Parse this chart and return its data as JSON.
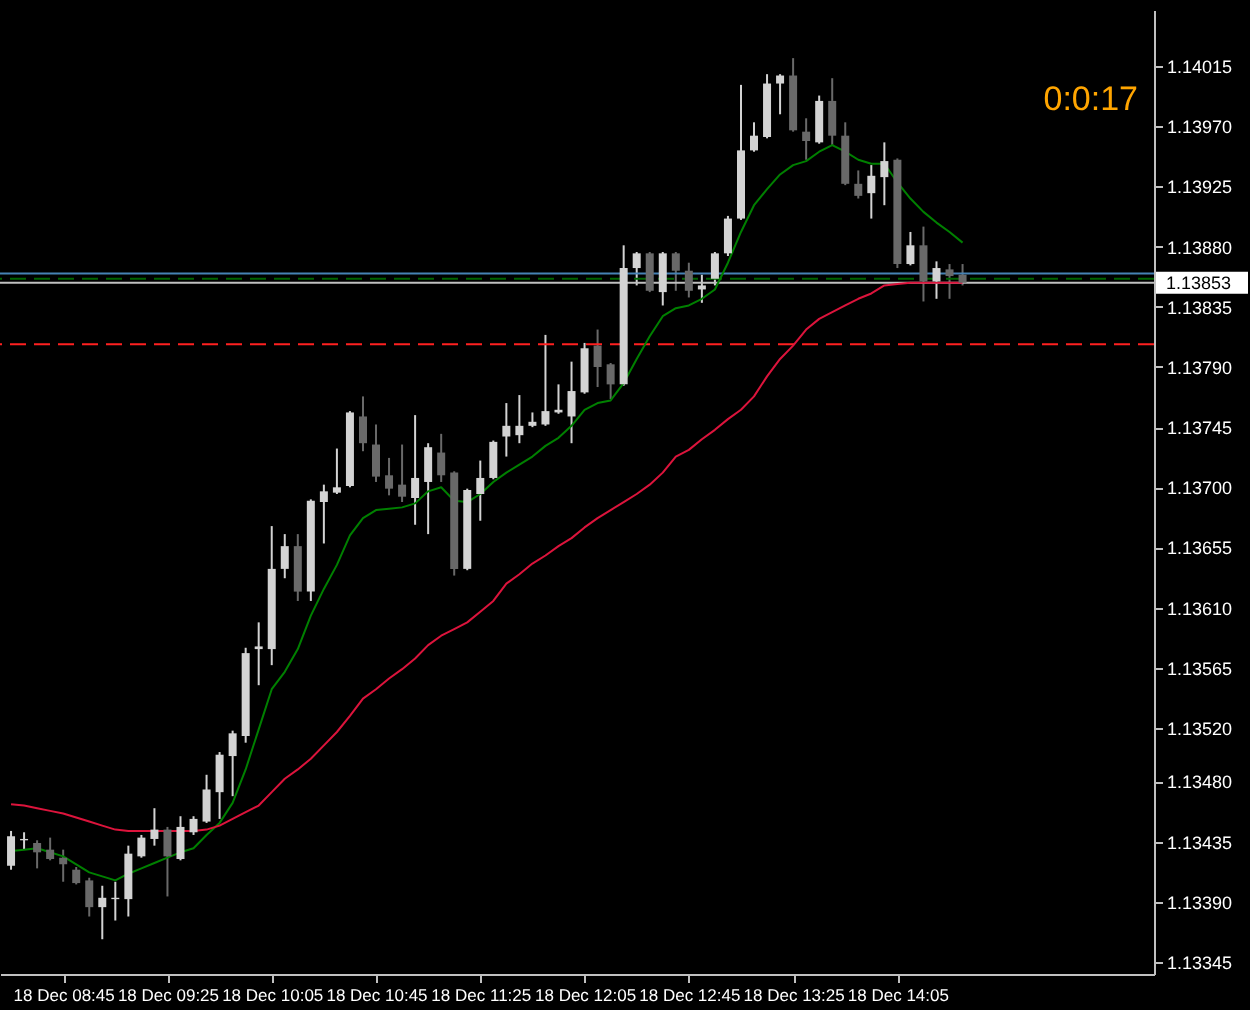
{
  "chart_data": {
    "type": "candlestick",
    "categories": [
      null,
      null,
      null,
      null,
      "18 Dec 08:45",
      null,
      null,
      null,
      null,
      null,
      null,
      null,
      "18 Dec 09:25",
      null,
      null,
      null,
      null,
      null,
      null,
      null,
      "18 Dec 10:05",
      null,
      null,
      null,
      null,
      null,
      null,
      null,
      "18 Dec 10:45",
      null,
      null,
      null,
      null,
      null,
      null,
      null,
      "18 Dec 11:25",
      null,
      null,
      null,
      null,
      null,
      null,
      null,
      "18 Dec 12:05",
      null,
      null,
      null,
      null,
      null,
      null,
      null,
      "18 Dec 12:45",
      null,
      null,
      null,
      null,
      null,
      null,
      null,
      "18 Dec 13:25",
      null,
      null,
      null,
      null,
      null,
      null,
      null,
      "18 Dec 14:05",
      null,
      null,
      null,
      null,
      null
    ],
    "ohlc": [
      [
        1.13417,
        1.13443,
        1.13414,
        1.13439
      ],
      [
        1.13436,
        1.13442,
        1.13429,
        1.13437
      ],
      [
        1.13434,
        1.13436,
        1.13415,
        1.13427
      ],
      [
        1.13429,
        1.13438,
        1.13421,
        1.13422
      ],
      [
        1.13423,
        1.13429,
        1.13405,
        1.13418
      ],
      [
        1.13414,
        1.13416,
        1.13403,
        1.13404
      ],
      [
        1.13406,
        1.13408,
        1.13379,
        1.13386
      ],
      [
        1.13386,
        1.13402,
        1.13362,
        1.13393
      ],
      [
        1.13392,
        1.13405,
        1.13376,
        1.13393
      ],
      [
        1.13392,
        1.13432,
        1.13379,
        1.13426
      ],
      [
        1.13424,
        1.1344,
        1.13423,
        1.13438
      ],
      [
        1.13437,
        1.1346,
        1.13432,
        1.13444
      ],
      [
        1.13444,
        1.13446,
        1.13394,
        1.13424
      ],
      [
        1.13422,
        1.13454,
        1.13421,
        1.13446
      ],
      [
        1.13442,
        1.13454,
        1.1344,
        1.13452
      ],
      [
        1.1345,
        1.13485,
        1.13449,
        1.13474
      ],
      [
        1.13472,
        1.13502,
        1.13452,
        1.135
      ],
      [
        1.13499,
        1.13518,
        1.13469,
        1.13516
      ],
      [
        1.13514,
        1.1358,
        1.13509,
        1.13576
      ],
      [
        1.13579,
        1.13599,
        1.13552,
        1.13581
      ],
      [
        1.13579,
        1.13671,
        1.13567,
        1.13639
      ],
      [
        1.13639,
        1.13665,
        1.13632,
        1.13656
      ],
      [
        1.13656,
        1.13665,
        1.13615,
        1.13622
      ],
      [
        1.13622,
        1.13691,
        1.13615,
        1.1369
      ],
      [
        1.13689,
        1.13702,
        1.13658,
        1.13697
      ],
      [
        1.13696,
        1.13729,
        1.13695,
        1.137
      ],
      [
        1.13701,
        1.13757,
        1.137,
        1.13756
      ],
      [
        1.13753,
        1.13768,
        1.13727,
        1.13733
      ],
      [
        1.13732,
        1.13747,
        1.13704,
        1.13708
      ],
      [
        1.13709,
        1.13722,
        1.13694,
        1.13699
      ],
      [
        1.13702,
        1.13732,
        1.13689,
        1.13693
      ],
      [
        1.13692,
        1.13754,
        1.13672,
        1.13707
      ],
      [
        1.13704,
        1.13733,
        1.13665,
        1.1373
      ],
      [
        1.13726,
        1.1374,
        1.13704,
        1.13709
      ],
      [
        1.13711,
        1.13712,
        1.13634,
        1.13639
      ],
      [
        1.13639,
        1.13699,
        1.13638,
        1.13698
      ],
      [
        1.13695,
        1.1372,
        1.13675,
        1.13707
      ],
      [
        1.13707,
        1.13735,
        1.13706,
        1.13734
      ],
      [
        1.13738,
        1.13763,
        1.13723,
        1.13746
      ],
      [
        1.13739,
        1.13769,
        1.13733,
        1.13746
      ],
      [
        1.13746,
        1.13756,
        1.13745,
        1.13749
      ],
      [
        1.13747,
        1.13814,
        1.13746,
        1.13757
      ],
      [
        1.13756,
        1.13777,
        1.13755,
        1.13758
      ],
      [
        1.13753,
        1.13794,
        1.13733,
        1.13772
      ],
      [
        1.13771,
        1.13808,
        1.1377,
        1.13804
      ],
      [
        1.13806,
        1.13818,
        1.13775,
        1.1379
      ],
      [
        1.13792,
        1.13793,
        1.13766,
        1.13777
      ],
      [
        1.13777,
        1.13881,
        1.13776,
        1.13864
      ],
      [
        1.13864,
        1.13876,
        1.13851,
        1.13875
      ],
      [
        1.13875,
        1.13876,
        1.13846,
        1.13847
      ],
      [
        1.13846,
        1.13876,
        1.13836,
        1.13875
      ],
      [
        1.13875,
        1.13876,
        1.13847,
        1.13862
      ],
      [
        1.13862,
        1.13868,
        1.13842,
        1.13847
      ],
      [
        1.13848,
        1.13859,
        1.13838,
        1.13851
      ],
      [
        1.13856,
        1.13876,
        1.13851,
        1.13875
      ],
      [
        1.13875,
        1.13903,
        1.13873,
        1.13901
      ],
      [
        1.13901,
        1.14001,
        1.139,
        1.13952
      ],
      [
        1.13952,
        1.13973,
        1.13951,
        1.13963
      ],
      [
        1.13962,
        1.14009,
        1.13961,
        1.14002
      ],
      [
        1.14002,
        1.14009,
        1.13979,
        1.14008
      ],
      [
        1.14008,
        1.14021,
        1.13966,
        1.13967
      ],
      [
        1.13966,
        1.13976,
        1.13945,
        1.13959
      ],
      [
        1.13958,
        1.13993,
        1.13957,
        1.13989
      ],
      [
        1.13989,
        1.14006,
        1.13956,
        1.13963
      ],
      [
        1.13963,
        1.13973,
        1.13926,
        1.13927
      ],
      [
        1.13927,
        1.13937,
        1.13916,
        1.13918
      ],
      [
        1.1392,
        1.13941,
        1.13901,
        1.13933
      ],
      [
        1.13932,
        1.13958,
        1.13911,
        1.13944
      ],
      [
        1.13945,
        1.13946,
        1.13864,
        1.13867
      ],
      [
        1.13867,
        1.13891,
        1.13866,
        1.13881
      ],
      [
        1.13881,
        1.13895,
        1.13839,
        1.13854
      ],
      [
        1.13854,
        1.13869,
        1.13841,
        1.13864
      ],
      [
        1.13863,
        1.13867,
        1.13841,
        1.13858
      ],
      [
        1.13859,
        1.13867,
        1.13851,
        1.13853
      ]
    ],
    "colors": [
      "#d3d3d3",
      "#d3d3d3",
      "#696969",
      "#696969",
      "#696969",
      "#696969",
      "#696969",
      "#d3d3d3",
      "#d3d3d3",
      "#d3d3d3",
      "#d3d3d3",
      "#d3d3d3",
      "#696969",
      "#d3d3d3",
      "#d3d3d3",
      "#d3d3d3",
      "#d3d3d3",
      "#d3d3d3",
      "#d3d3d3",
      "#d3d3d3",
      "#d3d3d3",
      "#d3d3d3",
      "#696969",
      "#d3d3d3",
      "#d3d3d3",
      "#d3d3d3",
      "#d3d3d3",
      "#696969",
      "#696969",
      "#696969",
      "#696969",
      "#d3d3d3",
      "#d3d3d3",
      "#696969",
      "#696969",
      "#d3d3d3",
      "#d3d3d3",
      "#d3d3d3",
      "#d3d3d3",
      "#d3d3d3",
      "#d3d3d3",
      "#d3d3d3",
      "#d3d3d3",
      "#d3d3d3",
      "#d3d3d3",
      "#696969",
      "#696969",
      "#d3d3d3",
      "#d3d3d3",
      "#696969",
      "#d3d3d3",
      "#696969",
      "#696969",
      "#d3d3d3",
      "#d3d3d3",
      "#d3d3d3",
      "#d3d3d3",
      "#d3d3d3",
      "#d3d3d3",
      "#d3d3d3",
      "#696969",
      "#696969",
      "#d3d3d3",
      "#696969",
      "#696969",
      "#696969",
      "#d3d3d3",
      "#d3d3d3",
      "#696969",
      "#d3d3d3",
      "#696969",
      "#d3d3d3",
      "#696969",
      "#696969"
    ],
    "series": [
      {
        "type": "line",
        "color": "#008000",
        "values": [
          1.13428,
          1.13429,
          1.1343,
          1.13427,
          1.13424,
          1.13418,
          1.13412,
          1.13409,
          1.13406,
          1.13411,
          1.13415,
          1.13419,
          1.13423,
          1.13427,
          1.1343,
          1.1344,
          1.13449,
          1.13464,
          1.13489,
          1.13519,
          1.13549,
          1.13562,
          1.13579,
          1.13604,
          1.13624,
          1.13642,
          1.13664,
          1.13677,
          1.13683,
          1.13684,
          1.13685,
          1.13688,
          1.13697,
          1.137,
          1.1369,
          1.13689,
          1.13695,
          1.13704,
          1.13711,
          1.13717,
          1.13723,
          1.13731,
          1.13737,
          1.13746,
          1.13758,
          1.13763,
          1.13765,
          1.13778,
          1.13796,
          1.13813,
          1.13828,
          1.13834,
          1.13836,
          1.13841,
          1.13848,
          1.13868,
          1.13891,
          1.13911,
          1.13923,
          1.13934,
          1.13941,
          1.13944,
          1.13951,
          1.13956,
          1.13951,
          1.13945,
          1.13942,
          1.13942,
          1.13928,
          1.13916,
          1.13906,
          1.13898,
          1.13891,
          1.13883
        ]
      },
      {
        "type": "line",
        "color": "#dc143c",
        "values": [
          1.13463,
          1.13462,
          1.1346,
          1.13458,
          1.13456,
          1.13453,
          1.1345,
          1.13447,
          1.13444,
          1.13443,
          1.13443,
          1.13443,
          1.13443,
          1.13443,
          1.13443,
          1.13444,
          1.13447,
          1.13452,
          1.13457,
          1.13462,
          1.13472,
          1.13482,
          1.13489,
          1.13497,
          1.13507,
          1.13517,
          1.13529,
          1.13542,
          1.13549,
          1.13557,
          1.13564,
          1.13572,
          1.13582,
          1.13589,
          1.13594,
          1.13599,
          1.13607,
          1.13615,
          1.13628,
          1.13635,
          1.13643,
          1.13649,
          1.13656,
          1.13662,
          1.1367,
          1.13677,
          1.13683,
          1.13689,
          1.13695,
          1.13702,
          1.13711,
          1.13723,
          1.13728,
          1.13736,
          1.13743,
          1.13751,
          1.13758,
          1.13768,
          1.13783,
          1.13796,
          1.13806,
          1.13818,
          1.13826,
          1.13831,
          1.13836,
          1.13841,
          1.13845,
          1.13851,
          1.13852,
          1.13853,
          1.13853,
          1.13853,
          1.13853,
          1.13853
        ]
      }
    ],
    "ref_lines": [
      {
        "axis": "y",
        "value": 1.1386,
        "color": "#4682b4",
        "line_style": "solid"
      },
      {
        "axis": "y",
        "value": 1.13856,
        "color": "#006400",
        "line_style": "dashed"
      },
      {
        "axis": "y",
        "value": 1.13853,
        "color": "#c0c0c0",
        "line_style": "solid",
        "label": "1.13853"
      },
      {
        "axis": "y",
        "value": 1.13807,
        "color": "#ff2020",
        "line_style": "dashed"
      }
    ],
    "annotations": [
      "0:0:17"
    ],
    "ylim": [
      1.13336,
      1.14057
    ],
    "yticks": [
      {
        "value": 1.14015,
        "label": "1.14015"
      },
      {
        "value": 1.1397,
        "label": "1.13970"
      },
      {
        "value": 1.13925,
        "label": "1.13925"
      },
      {
        "value": 1.1388,
        "label": "1.13880"
      },
      {
        "value": 1.13835,
        "label": "1.13835"
      },
      {
        "value": 1.1379,
        "label": "1.13790"
      },
      {
        "value": 1.13745,
        "label": "1.13745"
      },
      {
        "value": 1.137,
        "label": "1.13700"
      },
      {
        "value": 1.13655,
        "label": "1.13655"
      },
      {
        "value": 1.1361,
        "label": "1.13610"
      },
      {
        "value": 1.13565,
        "label": "1.13565"
      },
      {
        "value": 1.1352,
        "label": "1.13520"
      },
      {
        "value": 1.1348,
        "label": "1.13480"
      },
      {
        "value": 1.13435,
        "label": "1.13435"
      },
      {
        "value": 1.1339,
        "label": "1.13390"
      },
      {
        "value": 1.13345,
        "label": "1.13345"
      }
    ],
    "grid": false
  }
}
